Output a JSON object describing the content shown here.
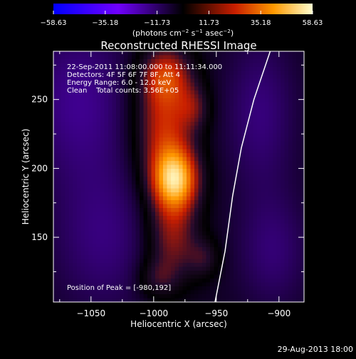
{
  "chart_data": {
    "type": "heatmap",
    "title": "Reconstructed RHESSI Image",
    "xlabel": "Heliocentric X (arcsec)",
    "ylabel": "Heliocentric Y (arcsec)",
    "xlim": [
      -1080,
      -880
    ],
    "ylim": [
      103,
      285
    ],
    "x_ticks": [
      -1050,
      -1000,
      -950,
      -900
    ],
    "x_tick_labels": [
      "−1050",
      "−1000",
      "−950",
      "−900"
    ],
    "y_ticks": [
      150,
      200,
      250
    ],
    "y_tick_labels": [
      "150",
      "200",
      "250"
    ],
    "colorbar": {
      "range": [
        -58.63,
        58.63
      ],
      "ticks": [
        -58.63,
        -35.18,
        -11.73,
        11.73,
        35.18,
        58.63
      ],
      "tick_labels": [
        "−58.63",
        "−35.18",
        "−11.73",
        "11.73",
        "35.18",
        "58.63"
      ],
      "unit_prefix": "(photons cm",
      "unit_mid1": " s",
      "unit_mid2": " asec",
      "unit_suffix": ")",
      "exp_cm": "−2",
      "exp_s": "−1",
      "exp_asec": "−2"
    },
    "annotations": [
      "22-Sep-2011 11:08:00.000 to 11:11:34.000",
      "Detectors: 4F 5F 6F 7F 8F, Att 4",
      "Energy Range: 6.0 - 12.0 keV",
      "Clean    Total counts: 3.56E+05"
    ],
    "peak_label": "Position of Peak = [-980,192]",
    "peak": {
      "x": -980,
      "y": 192,
      "value": 58.63
    },
    "sources": [
      {
        "x": -983,
        "y": 192,
        "sx": 13,
        "sy": 16,
        "amp": 48
      },
      {
        "x": -992,
        "y": 232,
        "sx": 16,
        "sy": 30,
        "amp": 28
      },
      {
        "x": -990,
        "y": 268,
        "sx": 14,
        "sy": 14,
        "amp": 22
      },
      {
        "x": -968,
        "y": 244,
        "sx": 9,
        "sy": 12,
        "amp": 14
      },
      {
        "x": -985,
        "y": 150,
        "sx": 14,
        "sy": 22,
        "amp": 22
      },
      {
        "x": -960,
        "y": 135,
        "sx": 9,
        "sy": 10,
        "amp": 12
      },
      {
        "x": -997,
        "y": 120,
        "sx": 11,
        "sy": 10,
        "amp": 12
      },
      {
        "x": -1060,
        "y": 250,
        "sx": 30,
        "sy": 40,
        "amp": -12
      },
      {
        "x": -1040,
        "y": 150,
        "sx": 30,
        "sy": 40,
        "amp": -10
      },
      {
        "x": -915,
        "y": 240,
        "sx": 20,
        "sy": 40,
        "amp": -10
      },
      {
        "x": -905,
        "y": 140,
        "sx": 20,
        "sy": 30,
        "amp": -9
      }
    ],
    "background_level": -4,
    "limb": [
      {
        "x": -951,
        "y": 103
      },
      {
        "x": -943,
        "y": 140
      },
      {
        "x": -937,
        "y": 180
      },
      {
        "x": -930,
        "y": 215
      },
      {
        "x": -920,
        "y": 250
      },
      {
        "x": -907,
        "y": 285
      }
    ],
    "footer_date": "29-Aug-2013 18:00"
  }
}
